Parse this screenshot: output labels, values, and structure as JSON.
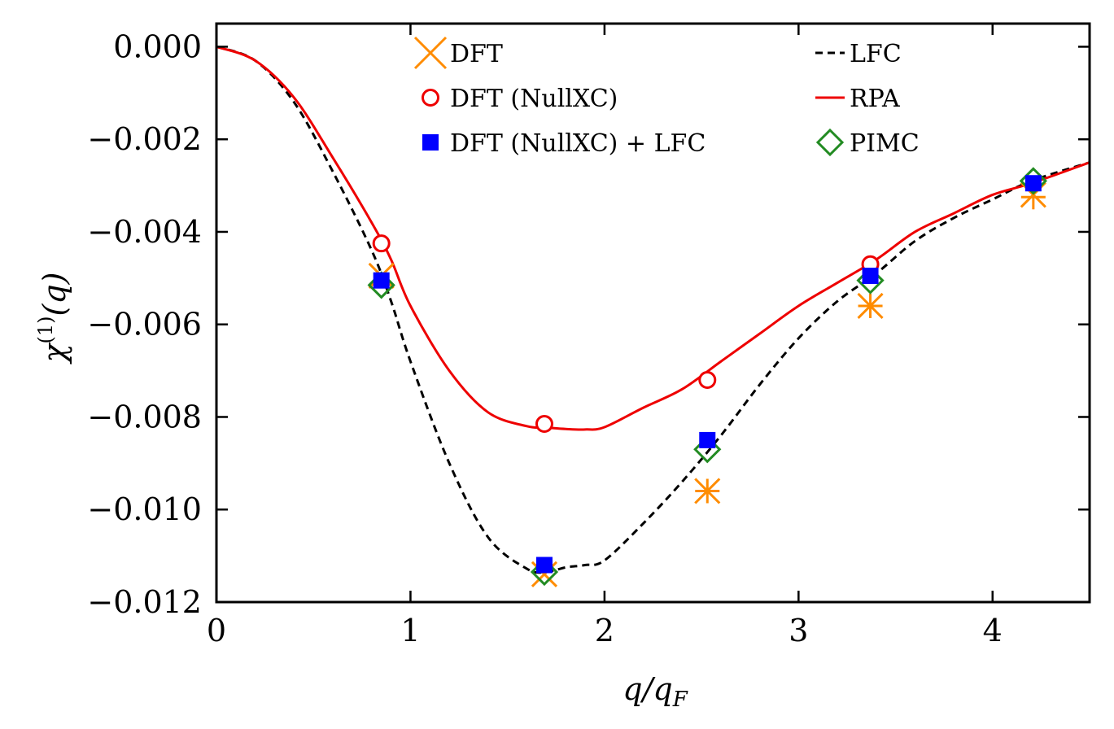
{
  "chart_data": {
    "type": "line",
    "title": "",
    "xlabel": "q/q_F",
    "ylabel": "χ^(1)(q)",
    "xlim": [
      0,
      4.5
    ],
    "ylim": [
      -0.012,
      0.0005
    ],
    "xticks": [
      0,
      1,
      2,
      3,
      4
    ],
    "xtick_labels": [
      "0",
      "1",
      "2",
      "3",
      "4"
    ],
    "yticks": [
      0.0,
      -0.002,
      -0.004,
      -0.006,
      -0.008,
      -0.01,
      -0.012
    ],
    "ytick_labels": [
      "0.000",
      "−0.002",
      "−0.004",
      "−0.006",
      "−0.008",
      "−0.010",
      "−0.012"
    ],
    "series": [
      {
        "name": "LFC",
        "kind": "line",
        "style": "dashed",
        "color": "#000000",
        "x": [
          0,
          0.2,
          0.4,
          0.6,
          0.8,
          0.9,
          1.0,
          1.2,
          1.4,
          1.6,
          1.7,
          1.8,
          1.9,
          2.0,
          2.2,
          2.4,
          2.6,
          2.8,
          3.0,
          3.2,
          3.4,
          3.6,
          3.8,
          4.0,
          4.2,
          4.5
        ],
        "values": [
          0.0,
          -0.0003,
          -0.0012,
          -0.0027,
          -0.0044,
          -0.0055,
          -0.0068,
          -0.009,
          -0.0106,
          -0.01128,
          -0.01135,
          -0.01125,
          -0.0112,
          -0.0111,
          -0.0103,
          -0.0094,
          -0.0084,
          -0.0073,
          -0.0063,
          -0.0055,
          -0.0049,
          -0.0042,
          -0.0037,
          -0.0033,
          -0.0029,
          -0.0025
        ]
      },
      {
        "name": "RPA",
        "kind": "line",
        "style": "solid",
        "color": "#ee0000",
        "x": [
          0,
          0.2,
          0.4,
          0.6,
          0.8,
          0.9,
          1.0,
          1.2,
          1.4,
          1.6,
          1.7,
          1.8,
          1.9,
          2.0,
          2.2,
          2.4,
          2.6,
          2.8,
          3.0,
          3.2,
          3.4,
          3.6,
          3.8,
          4.0,
          4.2,
          4.5
        ],
        "values": [
          0.0,
          -0.0003,
          -0.0011,
          -0.0024,
          -0.0038,
          -0.0046,
          -0.0056,
          -0.007,
          -0.0079,
          -0.0082,
          -0.00823,
          -0.00826,
          -0.00827,
          -0.00822,
          -0.0078,
          -0.0074,
          -0.0068,
          -0.0062,
          -0.0056,
          -0.0051,
          -0.0046,
          -0.004,
          -0.0036,
          -0.0032,
          -0.00295,
          -0.0025
        ]
      },
      {
        "name": "DFT",
        "kind": "marker",
        "marker": "x",
        "color": "#ff8c00",
        "x": [
          0.85,
          1.69,
          2.53,
          3.37,
          4.21
        ],
        "values": [
          -0.00495,
          -0.0114,
          -0.0096,
          -0.0056,
          -0.0032
        ]
      },
      {
        "name": "DFT (NullXC)",
        "kind": "marker",
        "marker": "circle",
        "color": "#ee0000",
        "x": [
          0.85,
          1.69,
          2.53,
          3.37
        ],
        "values": [
          -0.00425,
          -0.00815,
          -0.0072,
          -0.0047
        ]
      },
      {
        "name": "DFT (NullXC) + LFC",
        "kind": "marker",
        "marker": "square",
        "color": "#0000ff",
        "x": [
          0.85,
          1.69,
          2.53,
          3.37,
          4.21
        ],
        "values": [
          -0.00505,
          -0.0112,
          -0.0085,
          -0.00495,
          -0.00295
        ]
      },
      {
        "name": "PIMC",
        "kind": "marker",
        "marker": "diamond",
        "color": "#228b22",
        "x": [
          0.85,
          1.69,
          2.53,
          3.37,
          4.21
        ],
        "values": [
          -0.00515,
          -0.01135,
          -0.0087,
          -0.00505,
          -0.0029
        ]
      }
    ],
    "extra_markers": [
      {
        "name": "DFT-plus",
        "marker": "plus",
        "color": "#ff8c00",
        "x": [
          2.53,
          3.37,
          4.21
        ],
        "values": [
          -0.0096,
          -0.0056,
          -0.00325
        ]
      }
    ],
    "legend": {
      "placement": "top",
      "entries": [
        {
          "series": "DFT",
          "label": "DFT"
        },
        {
          "series": "DFT (NullXC)",
          "label": "DFT (NullXC)"
        },
        {
          "series": "DFT (NullXC) + LFC",
          "label": "DFT (NullXC) + LFC"
        },
        {
          "series": "LFC",
          "label": "LFC"
        },
        {
          "series": "RPA",
          "label": "RPA"
        },
        {
          "series": "PIMC",
          "label": "PIMC"
        }
      ]
    }
  }
}
